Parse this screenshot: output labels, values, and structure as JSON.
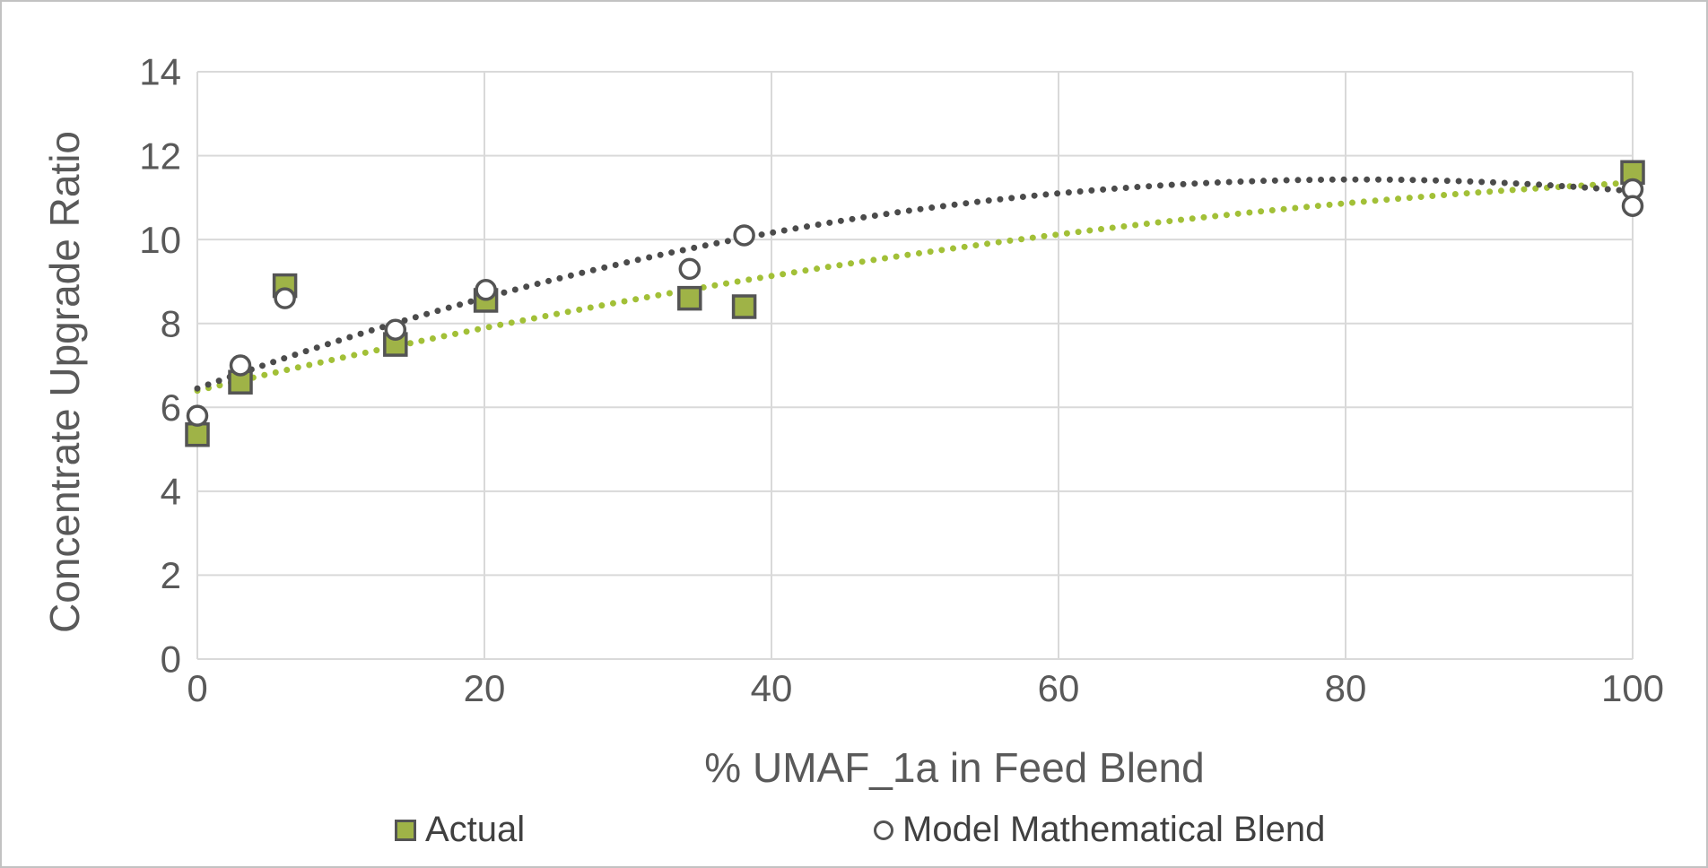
{
  "frame": {
    "background_color": "#ffffff",
    "border_color": "#c2c2c2"
  },
  "chart_data": {
    "type": "scatter",
    "title": "",
    "xlabel": "% UMAF_1a in Feed Blend",
    "ylabel": "Concentrate Upgrade Ratio",
    "xlim": [
      0,
      100
    ],
    "ylim": [
      0,
      14
    ],
    "x_ticks": [
      0,
      20,
      40,
      60,
      80,
      100
    ],
    "y_ticks": [
      0,
      2,
      4,
      6,
      8,
      10,
      12,
      14
    ],
    "grid": true,
    "legend_position": "bottom",
    "text_color": "#595959",
    "gridline_color": "#d9d9d9",
    "series": [
      {
        "name": "Actual",
        "marker": "square",
        "fill_color": "#9fb347",
        "border_color": "#545454",
        "points": [
          [
            0,
            5.35
          ],
          [
            3,
            6.6
          ],
          [
            6.1,
            8.9
          ],
          [
            13.8,
            7.5
          ],
          [
            20.1,
            8.55
          ],
          [
            34.3,
            8.6
          ],
          [
            38.1,
            8.4
          ],
          [
            100,
            11.6
          ]
        ]
      },
      {
        "name": "Model Mathematical Blend",
        "marker": "circle",
        "fill_color": "#ffffff",
        "border_color": "#545454",
        "points": [
          [
            0,
            5.8
          ],
          [
            3,
            7.0
          ],
          [
            6.1,
            8.6
          ],
          [
            13.8,
            7.85
          ],
          [
            20.1,
            8.8
          ],
          [
            34.3,
            9.3
          ],
          [
            38.1,
            10.1
          ],
          [
            100,
            11.2
          ],
          [
            100,
            10.8
          ]
        ]
      }
    ],
    "trendlines": [
      {
        "for_series": "Actual",
        "style": "dotted",
        "color": "#a2c037",
        "x_range": [
          0,
          100
        ],
        "quadratic_coeffs": {
          "intercept": 6.4,
          "linear": 0.0808,
          "quadratic": -0.0003125
        }
      },
      {
        "for_series": "Model Mathematical Blend",
        "style": "dotted",
        "color": "#4b4b4b",
        "x_range": [
          0,
          100
        ],
        "quadratic_coeffs": {
          "intercept": 6.45,
          "linear": 0.1233,
          "quadratic": -0.000763
        }
      }
    ]
  }
}
